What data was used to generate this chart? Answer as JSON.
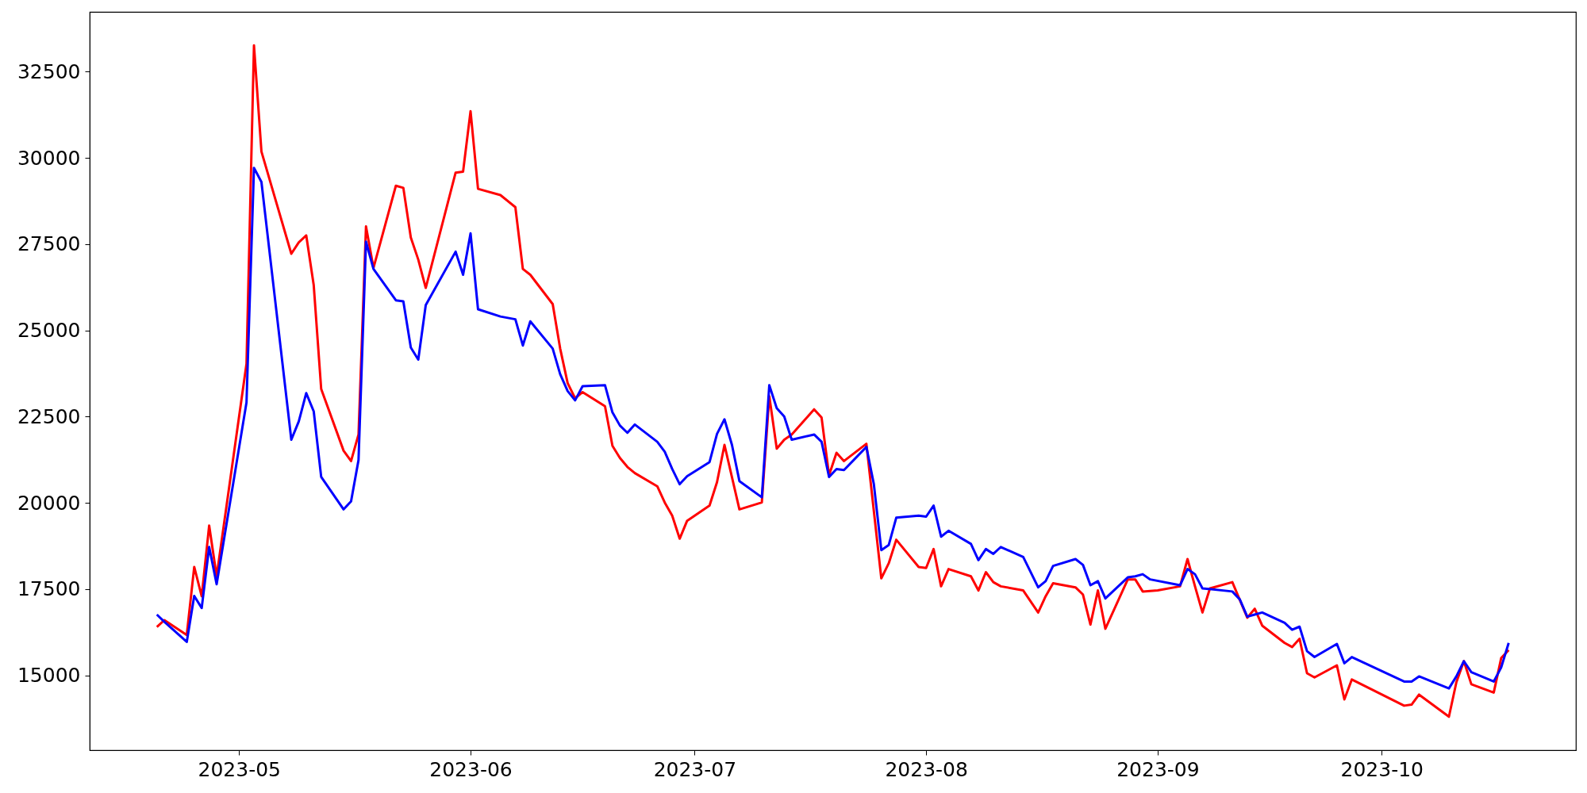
{
  "chart_data": {
    "type": "line",
    "xlim": [
      "2023-04-11",
      "2023-10-27"
    ],
    "xticks": [
      "2023-05",
      "2023-06",
      "2023-07",
      "2023-08",
      "2023-09",
      "2023-10"
    ],
    "ylim": [
      12830,
      34230
    ],
    "yticks": [
      15000,
      17500,
      20000,
      22500,
      25000,
      27500,
      30000,
      32500
    ],
    "series": [
      {
        "color": "#ff0000",
        "x": [
          "2023-04-20",
          "2023-04-21",
          "2023-04-24",
          "2023-04-25",
          "2023-04-26",
          "2023-04-27",
          "2023-04-28",
          "2023-05-02",
          "2023-05-03",
          "2023-05-04",
          "2023-05-08",
          "2023-05-09",
          "2023-05-10",
          "2023-05-11",
          "2023-05-12",
          "2023-05-15",
          "2023-05-16",
          "2023-05-17",
          "2023-05-18",
          "2023-05-19",
          "2023-05-22",
          "2023-05-23",
          "2023-05-24",
          "2023-05-25",
          "2023-05-26",
          "2023-05-30",
          "2023-05-31",
          "2023-06-01",
          "2023-06-02",
          "2023-06-05",
          "2023-06-07",
          "2023-06-08",
          "2023-06-09",
          "2023-06-12",
          "2023-06-13",
          "2023-06-14",
          "2023-06-15",
          "2023-06-16",
          "2023-06-19",
          "2023-06-20",
          "2023-06-21",
          "2023-06-22",
          "2023-06-23",
          "2023-06-26",
          "2023-06-27",
          "2023-06-28",
          "2023-06-29",
          "2023-06-30",
          "2023-07-03",
          "2023-07-04",
          "2023-07-05",
          "2023-07-07",
          "2023-07-10",
          "2023-07-11",
          "2023-07-12",
          "2023-07-13",
          "2023-07-14",
          "2023-07-17",
          "2023-07-18",
          "2023-07-19",
          "2023-07-20",
          "2023-07-21",
          "2023-07-24",
          "2023-07-26",
          "2023-07-27",
          "2023-07-28",
          "2023-07-31",
          "2023-08-01",
          "2023-08-02",
          "2023-08-03",
          "2023-08-04",
          "2023-08-07",
          "2023-08-08",
          "2023-08-09",
          "2023-08-10",
          "2023-08-11",
          "2023-08-14",
          "2023-08-16",
          "2023-08-17",
          "2023-08-18",
          "2023-08-21",
          "2023-08-22",
          "2023-08-23",
          "2023-08-24",
          "2023-08-25",
          "2023-08-28",
          "2023-08-29",
          "2023-08-30",
          "2023-09-01",
          "2023-09-04",
          "2023-09-05",
          "2023-09-06",
          "2023-09-07",
          "2023-09-08",
          "2023-09-11",
          "2023-09-13",
          "2023-09-14",
          "2023-09-15",
          "2023-09-18",
          "2023-09-19",
          "2023-09-20",
          "2023-09-21",
          "2023-09-22",
          "2023-09-25",
          "2023-09-26",
          "2023-09-27",
          "2023-10-04",
          "2023-10-05",
          "2023-10-06",
          "2023-10-10",
          "2023-10-11",
          "2023-10-12",
          "2023-10-13",
          "2023-10-16",
          "2023-10-17",
          "2023-10-18"
        ],
        "values": [
          16400,
          16600,
          16170,
          18140,
          17290,
          19340,
          17870,
          24030,
          33260,
          30180,
          27220,
          27550,
          27750,
          26310,
          23300,
          21510,
          21210,
          21980,
          28010,
          26810,
          29190,
          29130,
          27690,
          27050,
          26230,
          29570,
          29600,
          31350,
          29100,
          28920,
          28570,
          26780,
          26610,
          25760,
          24470,
          23470,
          23030,
          23210,
          22800,
          21650,
          21300,
          21040,
          20860,
          20480,
          20010,
          19630,
          18960,
          19480,
          19920,
          20600,
          21680,
          19810,
          20010,
          23090,
          21570,
          21830,
          21980,
          22710,
          22470,
          20800,
          21450,
          21210,
          21710,
          17810,
          18250,
          18930,
          18140,
          18110,
          18660,
          17580,
          18080,
          17870,
          17460,
          17990,
          17700,
          17580,
          17460,
          16820,
          17290,
          17670,
          17550,
          17340,
          16470,
          17460,
          16350,
          17780,
          17780,
          17430,
          17460,
          17580,
          18370,
          17580,
          16820,
          17520,
          17700,
          16670,
          16930,
          16440,
          15940,
          15820,
          16060,
          15060,
          14940,
          15290,
          14300,
          14880,
          14120,
          14150,
          14440,
          13800,
          14800,
          15410,
          14740,
          14500,
          15500,
          15730
        ]
      },
      {
        "color": "#0000ff",
        "x": [
          "2023-04-20",
          "2023-04-21",
          "2023-04-24",
          "2023-04-25",
          "2023-04-26",
          "2023-04-27",
          "2023-04-28",
          "2023-05-02",
          "2023-05-03",
          "2023-05-04",
          "2023-05-08",
          "2023-05-09",
          "2023-05-10",
          "2023-05-11",
          "2023-05-12",
          "2023-05-15",
          "2023-05-16",
          "2023-05-17",
          "2023-05-18",
          "2023-05-19",
          "2023-05-22",
          "2023-05-23",
          "2023-05-24",
          "2023-05-25",
          "2023-05-26",
          "2023-05-30",
          "2023-05-31",
          "2023-06-01",
          "2023-06-02",
          "2023-06-05",
          "2023-06-07",
          "2023-06-08",
          "2023-06-09",
          "2023-06-12",
          "2023-06-13",
          "2023-06-14",
          "2023-06-15",
          "2023-06-16",
          "2023-06-19",
          "2023-06-20",
          "2023-06-21",
          "2023-06-22",
          "2023-06-23",
          "2023-06-26",
          "2023-06-27",
          "2023-06-28",
          "2023-06-29",
          "2023-06-30",
          "2023-07-03",
          "2023-07-04",
          "2023-07-05",
          "2023-07-06",
          "2023-07-07",
          "2023-07-10",
          "2023-07-11",
          "2023-07-12",
          "2023-07-13",
          "2023-07-14",
          "2023-07-17",
          "2023-07-18",
          "2023-07-19",
          "2023-07-20",
          "2023-07-21",
          "2023-07-24",
          "2023-07-25",
          "2023-07-26",
          "2023-07-27",
          "2023-07-28",
          "2023-07-31",
          "2023-08-01",
          "2023-08-02",
          "2023-08-03",
          "2023-08-04",
          "2023-08-07",
          "2023-08-08",
          "2023-08-09",
          "2023-08-10",
          "2023-08-11",
          "2023-08-14",
          "2023-08-16",
          "2023-08-17",
          "2023-08-18",
          "2023-08-21",
          "2023-08-22",
          "2023-08-23",
          "2023-08-24",
          "2023-08-25",
          "2023-08-28",
          "2023-08-29",
          "2023-08-30",
          "2023-08-31",
          "2023-09-04",
          "2023-09-05",
          "2023-09-06",
          "2023-09-07",
          "2023-09-11",
          "2023-09-12",
          "2023-09-13",
          "2023-09-14",
          "2023-09-15",
          "2023-09-18",
          "2023-09-19",
          "2023-09-20",
          "2023-09-21",
          "2023-09-22",
          "2023-09-25",
          "2023-09-26",
          "2023-09-27",
          "2023-10-04",
          "2023-10-05",
          "2023-10-06",
          "2023-10-10",
          "2023-10-11",
          "2023-10-12",
          "2023-10-13",
          "2023-10-16",
          "2023-10-17",
          "2023-10-18"
        ],
        "values": [
          16760,
          16550,
          15970,
          17300,
          16950,
          18720,
          17640,
          22910,
          29710,
          29300,
          21830,
          22360,
          23180,
          22650,
          20750,
          19810,
          20040,
          21240,
          27570,
          26780,
          25870,
          25840,
          24500,
          24150,
          25730,
          27280,
          26610,
          27810,
          25610,
          25400,
          25320,
          24560,
          25260,
          24470,
          23730,
          23240,
          22970,
          23380,
          23410,
          22620,
          22240,
          22030,
          22270,
          21770,
          21480,
          20980,
          20540,
          20770,
          21180,
          22000,
          22420,
          21680,
          20630,
          20160,
          23410,
          22740,
          22500,
          21830,
          21980,
          21770,
          20750,
          20980,
          20950,
          21620,
          20540,
          18630,
          18780,
          19570,
          19630,
          19600,
          19920,
          19020,
          19190,
          18810,
          18340,
          18660,
          18520,
          18720,
          18430,
          17550,
          17730,
          18170,
          18370,
          18200,
          17610,
          17730,
          17230,
          17840,
          17870,
          17930,
          17780,
          17610,
          18080,
          17930,
          17520,
          17430,
          17200,
          16700,
          16760,
          16820,
          16520,
          16320,
          16410,
          15700,
          15530,
          15910,
          15350,
          15530,
          14820,
          14820,
          14970,
          14620,
          14970,
          15410,
          15090,
          14820,
          15230,
          15940
        ]
      }
    ]
  }
}
